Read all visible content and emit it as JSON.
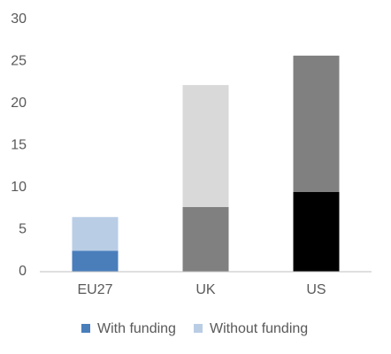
{
  "chart_data": {
    "type": "stacked-bar",
    "categories": [
      "EU27",
      "UK",
      "US"
    ],
    "series": [
      {
        "name": "With funding",
        "color": "#4a7ebb",
        "point_colors": [
          "#4a7ebb",
          "#808080",
          "#000000"
        ],
        "values": [
          2.5,
          7.7,
          9.5
        ]
      },
      {
        "name": "Without funding",
        "color": "#b9cde5",
        "point_colors": [
          "#b9cde5",
          "#d9d9d9",
          "#808080"
        ],
        "values": [
          4.0,
          14.5,
          16.2
        ]
      }
    ],
    "ylim": [
      0,
      30
    ],
    "yticks": [
      0,
      5,
      10,
      15,
      20,
      25,
      30
    ],
    "grid": false,
    "legend": "bottom"
  }
}
